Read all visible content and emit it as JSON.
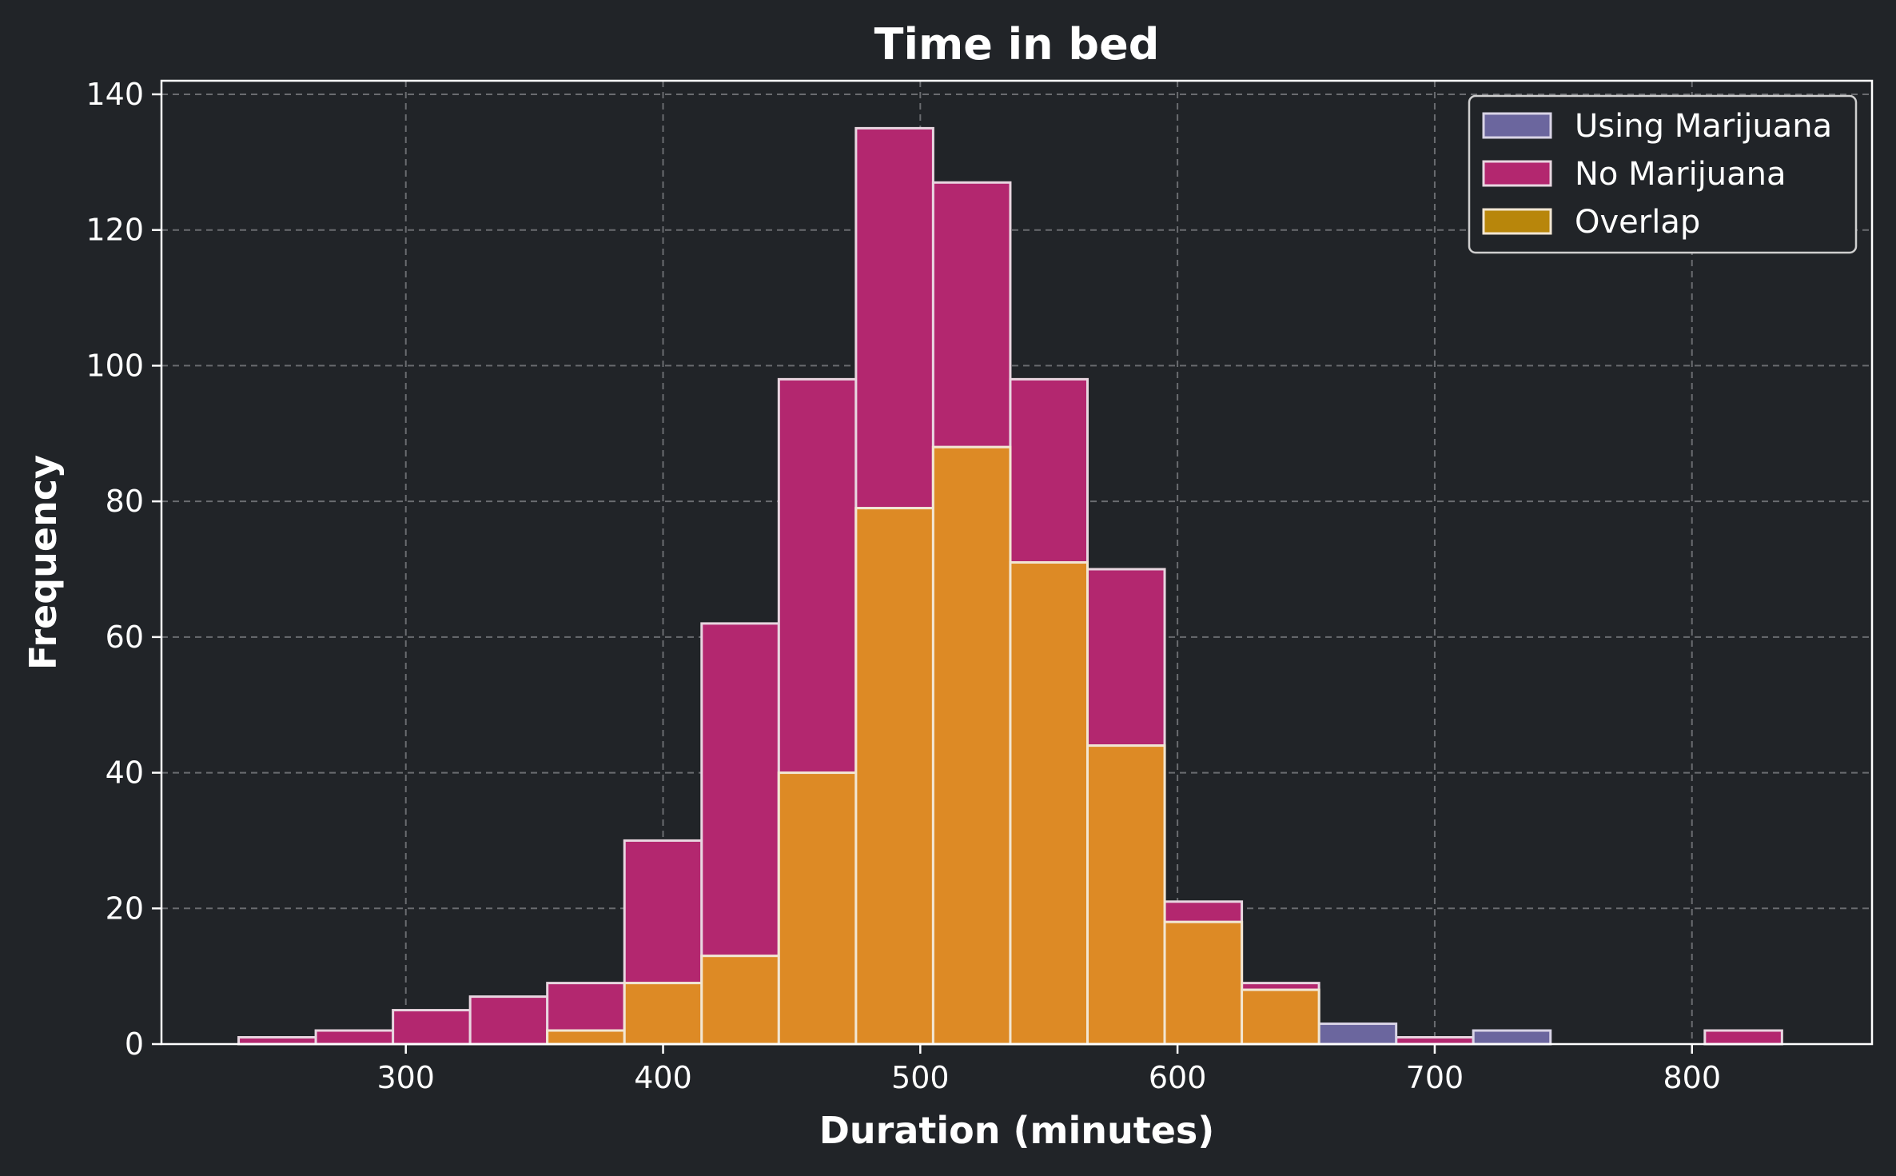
{
  "chart_data": {
    "type": "bar",
    "title": "Time in bed",
    "xlabel": "Duration (minutes)",
    "ylabel": "Frequency",
    "xlim": [
      205,
      870
    ],
    "ylim": [
      0,
      142
    ],
    "xticks": [
      300,
      400,
      500,
      600,
      700,
      800
    ],
    "yticks": [
      0,
      20,
      40,
      60,
      80,
      100,
      120,
      140
    ],
    "grid": true,
    "legend_position": "top-right",
    "bin_width": 30,
    "bin_starts": [
      235,
      265,
      295,
      325,
      355,
      385,
      415,
      445,
      475,
      505,
      535,
      565,
      595,
      625,
      655,
      685,
      715,
      745,
      775,
      805
    ],
    "series": [
      {
        "name": "Using Marijuana",
        "color": "#6b669e",
        "values": [
          0,
          0,
          0,
          0,
          2,
          9,
          13,
          40,
          79,
          88,
          71,
          44,
          18,
          8,
          3,
          0,
          2,
          0,
          0,
          0
        ]
      },
      {
        "name": "No Marijuana",
        "color": "#b3276f",
        "values": [
          1,
          2,
          5,
          7,
          9,
          30,
          62,
          98,
          135,
          127,
          98,
          70,
          21,
          9,
          0,
          1,
          0,
          0,
          0,
          2
        ]
      },
      {
        "name": "Overlap",
        "color": "#b8860b",
        "display_color": "#dd8a25",
        "values": [
          0,
          0,
          0,
          0,
          2,
          9,
          13,
          40,
          79,
          88,
          71,
          44,
          18,
          8,
          0,
          0,
          0,
          0,
          0,
          0
        ]
      }
    ]
  }
}
